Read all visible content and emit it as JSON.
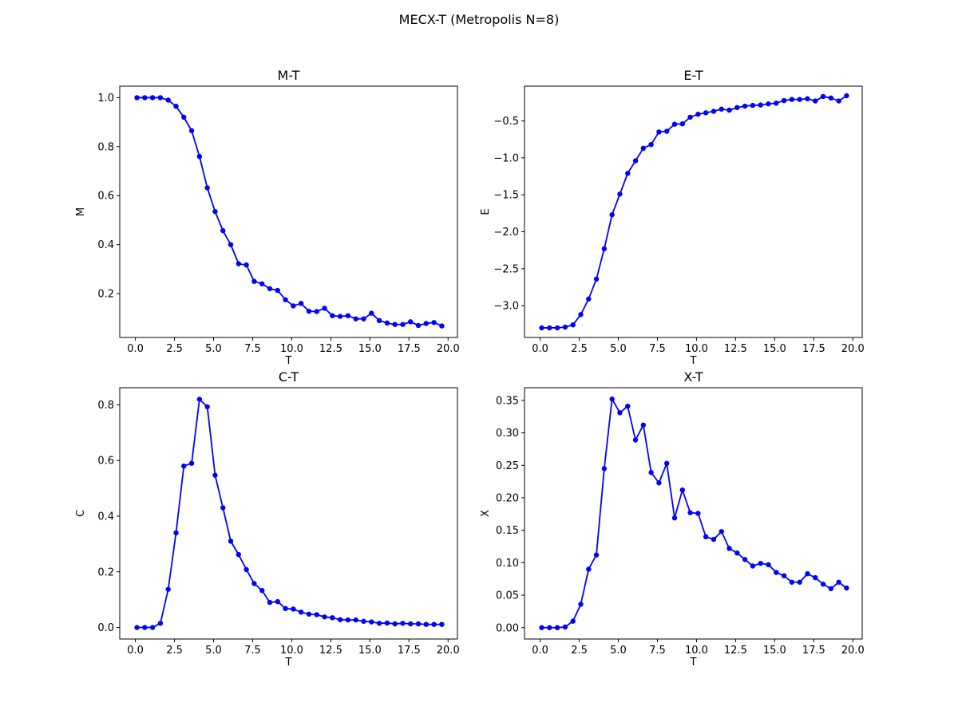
{
  "suptitle": "MECX-T (Metropolis N=8)",
  "colors": {
    "series": "#0000ff",
    "axes": "#000000",
    "background": "#ffffff"
  },
  "chart_data": [
    {
      "type": "line",
      "title": "M-T",
      "xlabel": "T",
      "ylabel": "M",
      "xlim": [
        -1.0,
        20.6
      ],
      "ylim": [
        0.021,
        1.047
      ],
      "xticks": [
        0.0,
        2.5,
        5.0,
        7.5,
        10.0,
        12.5,
        15.0,
        17.5,
        20.0
      ],
      "xtick_labels": [
        "0.0",
        "2.5",
        "5.0",
        "7.5",
        "10.0",
        "12.5",
        "15.0",
        "17.5",
        "20.0"
      ],
      "yticks": [
        0.2,
        0.4,
        0.6,
        0.8,
        1.0
      ],
      "ytick_labels": [
        "0.2",
        "0.4",
        "0.6",
        "0.8",
        "1.0"
      ],
      "x": [
        0.1,
        0.6,
        1.1,
        1.6,
        2.1,
        2.6,
        3.1,
        3.6,
        4.1,
        4.6,
        5.1,
        5.6,
        6.1,
        6.6,
        7.1,
        7.6,
        8.1,
        8.6,
        9.1,
        9.6,
        10.1,
        10.6,
        11.1,
        11.6,
        12.1,
        12.6,
        13.1,
        13.6,
        14.1,
        14.6,
        15.1,
        15.6,
        16.1,
        16.6,
        17.1,
        17.6,
        18.1,
        18.6,
        19.1,
        19.6
      ],
      "y": [
        1.0,
        1.0,
        1.0,
        1.0,
        0.99,
        0.965,
        0.92,
        0.865,
        0.76,
        0.632,
        0.535,
        0.457,
        0.4,
        0.322,
        0.317,
        0.25,
        0.24,
        0.22,
        0.213,
        0.175,
        0.15,
        0.16,
        0.128,
        0.127,
        0.14,
        0.11,
        0.107,
        0.11,
        0.097,
        0.097,
        0.12,
        0.09,
        0.08,
        0.074,
        0.074,
        0.085,
        0.07,
        0.078,
        0.082,
        0.068
      ]
    },
    {
      "type": "line",
      "title": "E-T",
      "xlabel": "T",
      "ylabel": "E",
      "xlim": [
        -1.0,
        20.6
      ],
      "ylim": [
        -3.43,
        -0.03
      ],
      "xticks": [
        0.0,
        2.5,
        5.0,
        7.5,
        10.0,
        12.5,
        15.0,
        17.5,
        20.0
      ],
      "xtick_labels": [
        "0.0",
        "2.5",
        "5.0",
        "7.5",
        "10.0",
        "12.5",
        "15.0",
        "17.5",
        "20.0"
      ],
      "yticks": [
        -3.0,
        -2.5,
        -2.0,
        -1.5,
        -1.0,
        -0.5
      ],
      "ytick_labels": [
        "−3.0",
        "−2.5",
        "−2.0",
        "−1.5",
        "−1.0",
        "−0.5"
      ],
      "x": [
        0.1,
        0.6,
        1.1,
        1.6,
        2.1,
        2.6,
        3.1,
        3.6,
        4.1,
        4.6,
        5.1,
        5.6,
        6.1,
        6.6,
        7.1,
        7.6,
        8.1,
        8.6,
        9.1,
        9.6,
        10.1,
        10.6,
        11.1,
        11.6,
        12.1,
        12.6,
        13.1,
        13.6,
        14.1,
        14.6,
        15.1,
        15.6,
        16.1,
        16.6,
        17.1,
        17.6,
        18.1,
        18.6,
        19.1,
        19.6
      ],
      "y": [
        -3.3,
        -3.3,
        -3.3,
        -3.29,
        -3.26,
        -3.12,
        -2.91,
        -2.64,
        -2.23,
        -1.77,
        -1.49,
        -1.21,
        -1.04,
        -0.87,
        -0.82,
        -0.65,
        -0.64,
        -0.545,
        -0.54,
        -0.45,
        -0.41,
        -0.39,
        -0.37,
        -0.34,
        -0.355,
        -0.32,
        -0.3,
        -0.29,
        -0.285,
        -0.27,
        -0.26,
        -0.225,
        -0.21,
        -0.21,
        -0.2,
        -0.23,
        -0.17,
        -0.19,
        -0.23,
        -0.16
      ]
    },
    {
      "type": "line",
      "title": "C-T",
      "xlabel": "T",
      "ylabel": "C",
      "xlim": [
        -1.0,
        20.6
      ],
      "ylim": [
        -0.0415,
        0.8615
      ],
      "xticks": [
        0.0,
        2.5,
        5.0,
        7.5,
        10.0,
        12.5,
        15.0,
        17.5,
        20.0
      ],
      "xtick_labels": [
        "0.0",
        "2.5",
        "5.0",
        "7.5",
        "10.0",
        "12.5",
        "15.0",
        "17.5",
        "20.0"
      ],
      "yticks": [
        0.0,
        0.2,
        0.4,
        0.6,
        0.8
      ],
      "ytick_labels": [
        "0.0",
        "0.2",
        "0.4",
        "0.6",
        "0.8"
      ],
      "x": [
        0.1,
        0.6,
        1.1,
        1.6,
        2.1,
        2.6,
        3.1,
        3.6,
        4.1,
        4.6,
        5.1,
        5.6,
        6.1,
        6.6,
        7.1,
        7.6,
        8.1,
        8.6,
        9.1,
        9.6,
        10.1,
        10.6,
        11.1,
        11.6,
        12.1,
        12.6,
        13.1,
        13.6,
        14.1,
        14.6,
        15.1,
        15.6,
        16.1,
        16.6,
        17.1,
        17.6,
        18.1,
        18.6,
        19.1,
        19.6
      ],
      "y": [
        0.0,
        0.0,
        0.0,
        0.015,
        0.137,
        0.34,
        0.58,
        0.59,
        0.82,
        0.793,
        0.547,
        0.43,
        0.31,
        0.262,
        0.208,
        0.158,
        0.133,
        0.09,
        0.093,
        0.068,
        0.066,
        0.055,
        0.048,
        0.046,
        0.038,
        0.035,
        0.028,
        0.027,
        0.027,
        0.022,
        0.02,
        0.015,
        0.016,
        0.013,
        0.015,
        0.013,
        0.013,
        0.011,
        0.011,
        0.011
      ]
    },
    {
      "type": "line",
      "title": "X-T",
      "xlabel": "T",
      "ylabel": "X",
      "xlim": [
        -1.0,
        20.6
      ],
      "ylim": [
        -0.0175,
        0.3695
      ],
      "xticks": [
        0.0,
        2.5,
        5.0,
        7.5,
        10.0,
        12.5,
        15.0,
        17.5,
        20.0
      ],
      "xtick_labels": [
        "0.0",
        "2.5",
        "5.0",
        "7.5",
        "10.0",
        "12.5",
        "15.0",
        "17.5",
        "20.0"
      ],
      "yticks": [
        0.0,
        0.05,
        0.1,
        0.15,
        0.2,
        0.25,
        0.3,
        0.35
      ],
      "ytick_labels": [
        "0.00",
        "0.05",
        "0.10",
        "0.15",
        "0.20",
        "0.25",
        "0.30",
        "0.35"
      ],
      "x": [
        0.1,
        0.6,
        1.1,
        1.6,
        2.1,
        2.6,
        3.1,
        3.6,
        4.1,
        4.6,
        5.1,
        5.6,
        6.1,
        6.6,
        7.1,
        7.6,
        8.1,
        8.6,
        9.1,
        9.6,
        10.1,
        10.6,
        11.1,
        11.6,
        12.1,
        12.6,
        13.1,
        13.6,
        14.1,
        14.6,
        15.1,
        15.6,
        16.1,
        16.6,
        17.1,
        17.6,
        18.1,
        18.6,
        19.1,
        19.6
      ],
      "y": [
        0.0,
        0.0,
        0.0,
        0.001,
        0.01,
        0.036,
        0.09,
        0.112,
        0.245,
        0.352,
        0.331,
        0.341,
        0.289,
        0.312,
        0.239,
        0.223,
        0.253,
        0.169,
        0.212,
        0.177,
        0.176,
        0.14,
        0.136,
        0.148,
        0.122,
        0.115,
        0.105,
        0.095,
        0.099,
        0.097,
        0.085,
        0.08,
        0.07,
        0.07,
        0.083,
        0.077,
        0.067,
        0.06,
        0.07,
        0.061
      ]
    }
  ]
}
